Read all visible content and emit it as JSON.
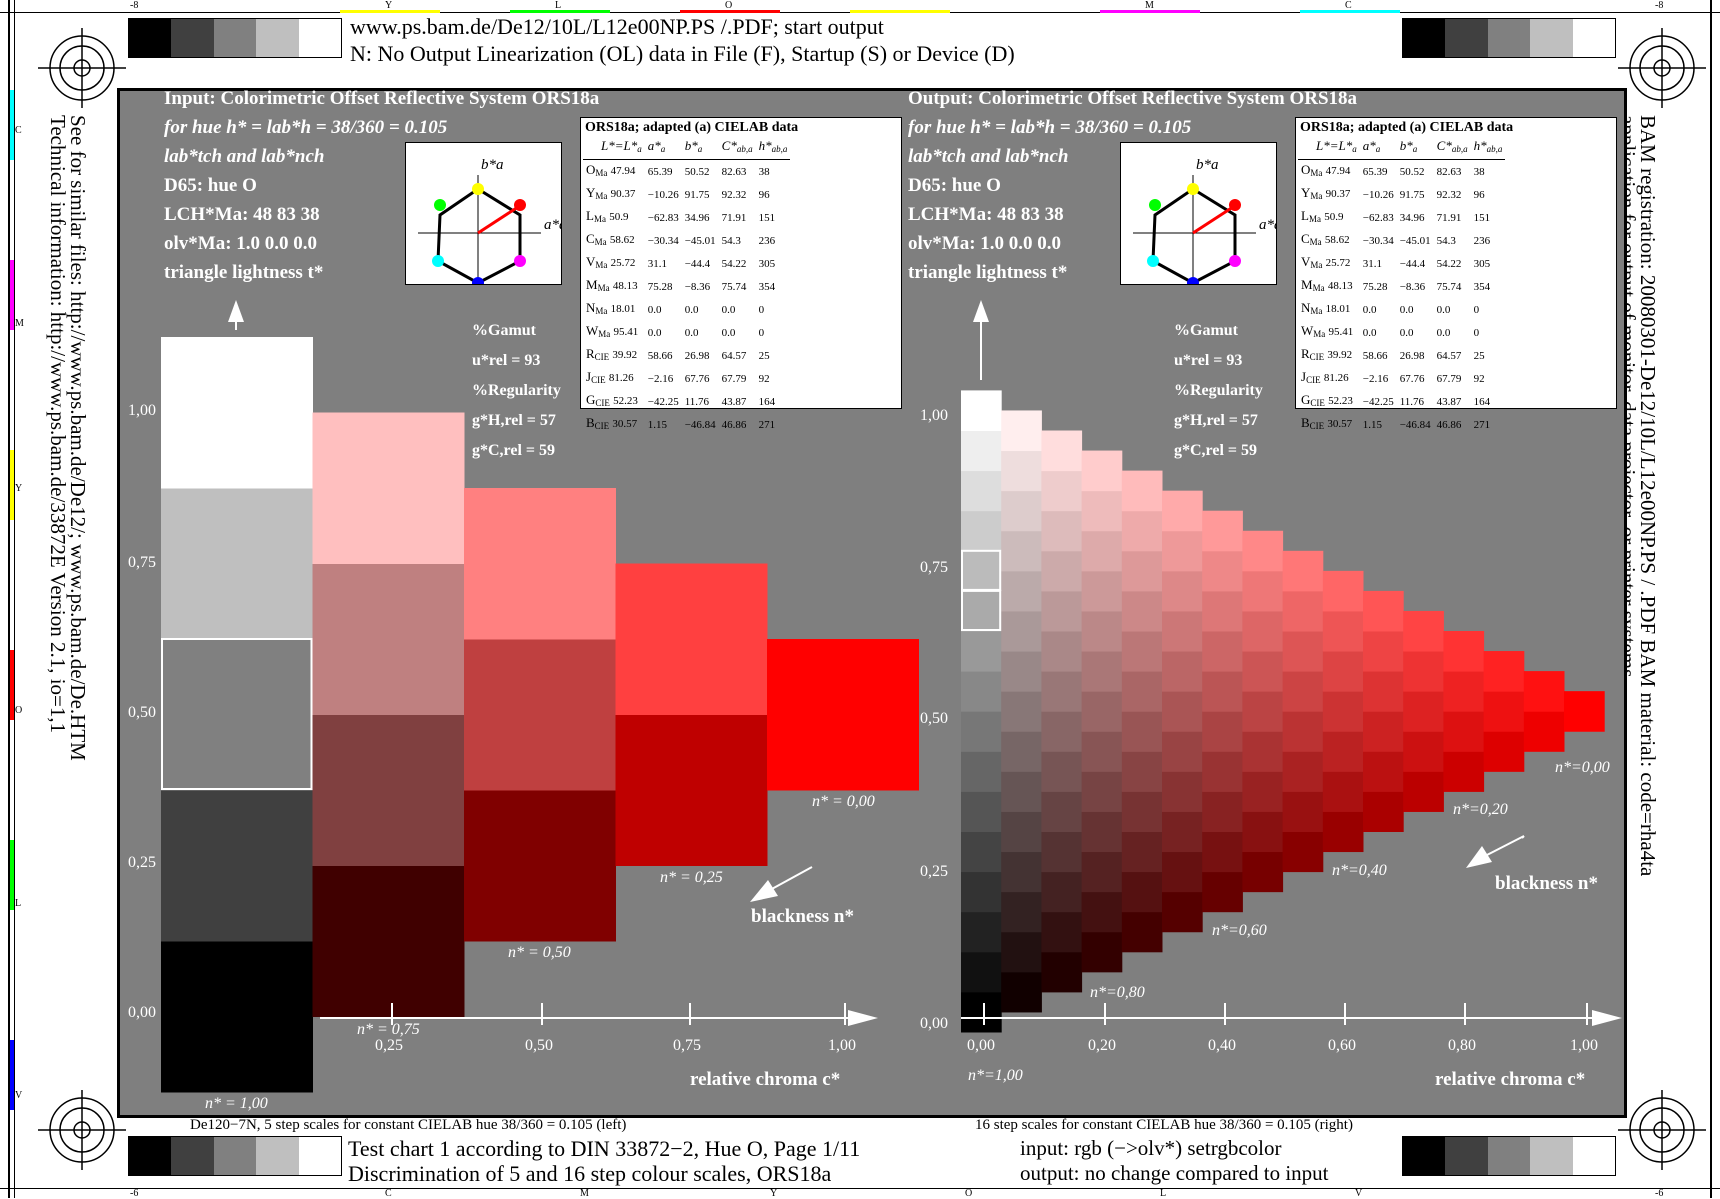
{
  "header": {
    "line1": "www.ps.bam.de/De12/10L/L12e00NP.PS /.PDF; start output",
    "line2": "N: No Output Linearization (OL) data in File (F), Startup (S) or Device (D)"
  },
  "footer": {
    "left_caption": "De120−7N, 5  step scales for constant CIELAB hue 38/360 = 0.105 (left)",
    "right_caption": "16  step scales for constant CIELAB hue 38/360 = 0.105 (right)",
    "title1": "Test chart 1 according to DIN 33872−2, Hue O, Page 1/11",
    "title2": "Discrimination of 5 and 16 step colour scales, ORS18a",
    "io1": "input: rgb (−>olv*) setrgbcolor",
    "io2": "output: no change compared to input"
  },
  "side_left": {
    "line1": "See for similar files: http://www.ps.bam.de/De12/; www.ps.bam.de/De.HTM",
    "line2": "Technical information: http://www.ps.bam.de/33872E   Version 2.1, io=1,1"
  },
  "side_right": {
    "line1": "BAM registration: 20080301-De12/10L/L12e00NP.PS / .PDF     BAM material: code=rha4ta",
    "line2": "application for output of monitor, data projector, or printer systems"
  },
  "margin_marks": {
    "top": [
      "-8",
      "Y",
      "L",
      "O",
      "M",
      "C",
      "-8"
    ],
    "bottom": [
      "-6",
      "C",
      "M",
      "Y",
      "O",
      "L",
      "V",
      "-6"
    ],
    "left": [
      "C",
      "M",
      "Y",
      "O",
      "L",
      "V"
    ]
  },
  "gray_strip": [
    "#000000",
    "#404040",
    "#808080",
    "#bfbfbf",
    "#ffffff"
  ],
  "left_panel": {
    "title": "Input:  Colorimetric Offset Reflective System ORS18a",
    "hue": "for hue h* = lab*h = 38/360 = 0.105",
    "lines": [
      "lab*tch and lab*nch",
      "D65: hue O",
      "LCH*Ma: 48  83  38",
      "olv*Ma: 1.0  0.0  0.0",
      "triangle lightness t*"
    ],
    "gamut": [
      "%Gamut",
      "u*rel = 93",
      "%Regularity",
      "g*H,rel = 57",
      "g*C,rel = 59"
    ]
  },
  "right_panel": {
    "title": "Output: Colorimetric Offset Reflective System ORS18a",
    "hue": "for hue h* = lab*h = 38/360 = 0.105",
    "lines": [
      "lab*tch and lab*nch",
      "D65: hue O",
      "LCH*Ma: 48  83  38",
      "olv*Ma: 1.0  0.0  0.0",
      "triangle lightness t*"
    ],
    "gamut": [
      "%Gamut",
      "u*rel = 93",
      "%Regularity",
      "g*H,rel = 57",
      "g*C,rel = 59"
    ]
  },
  "lab_table": {
    "title": "ORS18a; adapted (a) CIELAB data",
    "headers": [
      "L*=L*a",
      "a*a",
      "b*a",
      "C*ab,a",
      "h*ab,a"
    ],
    "rows": [
      [
        "OMa",
        "47.94",
        "65.39",
        "50.52",
        "82.63",
        "38"
      ],
      [
        "YMa",
        "90.37",
        "−10.26",
        "91.75",
        "92.32",
        "96"
      ],
      [
        "LMa",
        "50.9",
        "−62.83",
        "34.96",
        "71.91",
        "151"
      ],
      [
        "CMa",
        "58.62",
        "−30.34",
        "−45.01",
        "54.3",
        "236"
      ],
      [
        "VMa",
        "25.72",
        "31.1",
        "−44.4",
        "54.22",
        "305"
      ],
      [
        "MMa",
        "48.13",
        "75.28",
        "−8.36",
        "75.74",
        "354"
      ],
      [
        "NMa",
        "18.01",
        "0.0",
        "0.0",
        "0.0",
        "0"
      ],
      [
        "WMa",
        "95.41",
        "0.0",
        "0.0",
        "0.0",
        "0"
      ],
      [
        "RCIE",
        "39.92",
        "58.66",
        "26.98",
        "64.57",
        "25"
      ],
      [
        "JCIE",
        "81.26",
        "−2.16",
        "67.76",
        "67.79",
        "92"
      ],
      [
        "GCIE",
        "52.23",
        "−42.25",
        "11.76",
        "43.87",
        "164"
      ],
      [
        "BCIE",
        "30.57",
        "1.15",
        "−46.84",
        "46.86",
        "271"
      ]
    ]
  },
  "hue_diagram": {
    "b_label": "b*a",
    "a_label": "a*a"
  },
  "chart_data": [
    {
      "type": "heatmap",
      "description_id": "left 5-step scales",
      "steps": 5,
      "xlabel": "relative chroma c*",
      "ylabel": "triangle lightness t*",
      "x_ticks": [
        "0,25",
        "0,50",
        "0,75",
        "1,00"
      ],
      "y_ticks": [
        "0,00",
        "0,25",
        "0,50",
        "0,75",
        "1,00"
      ],
      "n_labels": [
        "n* = 1,00",
        "n* = 0,75",
        "n* = 0,50",
        "n* = 0,25",
        "n* = 0,00"
      ],
      "arrow_label": "blackness n*",
      "hue_color": "#ff0000"
    },
    {
      "type": "heatmap",
      "description_id": "right 16-step scales",
      "steps": 16,
      "xlabel": "relative chroma c*",
      "ylabel": "triangle lightness t*",
      "x_ticks": [
        "0,00",
        "0,20",
        "0,40",
        "0,60",
        "0,80",
        "1,00"
      ],
      "y_ticks": [
        "0,00",
        "0,25",
        "0,50",
        "0,75",
        "1,00"
      ],
      "n_labels": [
        "n*=1,00",
        "n*=0,80",
        "n*=0,60",
        "n*=0,40",
        "n*=0,20",
        "n*=0,00"
      ],
      "arrow_label": "blackness n*",
      "hue_color": "#ff0000"
    }
  ]
}
